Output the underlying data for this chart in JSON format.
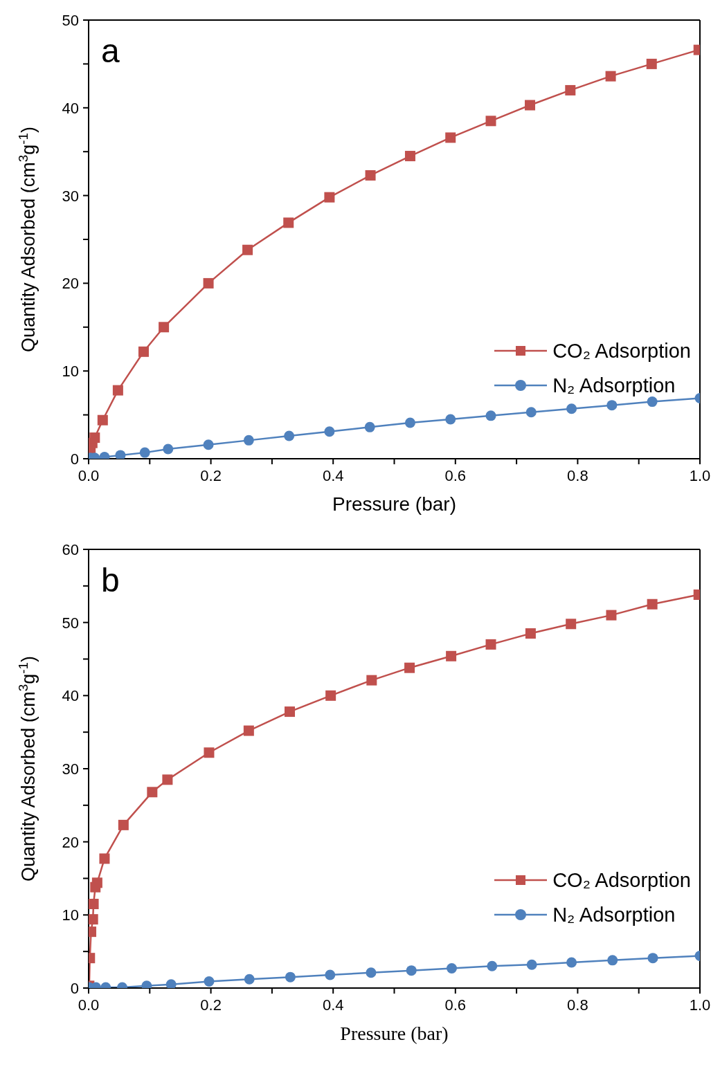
{
  "chart_data": [
    {
      "type": "line",
      "annotations": [
        "a"
      ],
      "xlabel": "Pressure (bar)",
      "ylabel": "Quantity Adsorbed (cm$^{3}$g$^{-1}$)",
      "xlim": [
        0,
        1
      ],
      "ylim": [
        0,
        50
      ],
      "xticks": [
        {
          "value": 0,
          "label": "0.0"
        },
        {
          "value": 0.1,
          "label": null
        },
        0.2,
        {
          "value": 0.3,
          "label": null
        },
        0.4,
        {
          "value": 0.5,
          "label": null
        },
        0.6,
        {
          "value": 0.7,
          "label": null
        },
        0.8,
        {
          "value": 0.9,
          "label": null
        },
        {
          "value": 1,
          "label": "1.0"
        }
      ],
      "yticks": [
        0,
        {
          "value": 5,
          "label": null
        },
        10,
        {
          "value": 15,
          "label": null
        },
        20,
        {
          "value": 25,
          "label": null
        },
        30,
        {
          "value": 35,
          "label": null
        },
        40,
        {
          "value": 45,
          "label": null
        },
        50
      ],
      "legend": "right",
      "line_style": "solid",
      "series": [
        {
          "name": "CO₂ Adsorption",
          "color": "#c0504d",
          "marker": "square",
          "x": [
            0.003,
            0.006,
            0.01,
            0.023,
            0.048,
            0.09,
            0.123,
            0.196,
            0.26,
            0.327,
            0.394,
            0.461,
            0.526,
            0.592,
            0.658,
            0.722,
            0.788,
            0.854,
            0.921,
            0.998
          ],
          "values": [
            1.0,
            1.8,
            2.4,
            4.4,
            7.8,
            12.2,
            15.0,
            20.0,
            23.8,
            26.9,
            29.8,
            32.3,
            34.5,
            36.6,
            38.5,
            40.3,
            42.0,
            43.6,
            45.0,
            46.6
          ]
        },
        {
          "name": "N₂ Adsorption",
          "color": "#4f81bd",
          "marker": "circle",
          "x": [
            0.003,
            0.01,
            0.026,
            0.052,
            0.092,
            0.13,
            0.196,
            0.262,
            0.328,
            0.394,
            0.46,
            0.526,
            0.592,
            0.658,
            0.724,
            0.79,
            0.856,
            0.922,
            1.0
          ],
          "values": [
            0.1,
            0.1,
            0.2,
            0.4,
            0.7,
            1.1,
            1.6,
            2.1,
            2.6,
            3.1,
            3.6,
            4.1,
            4.5,
            4.9,
            5.3,
            5.7,
            6.1,
            6.5,
            6.9
          ]
        }
      ]
    },
    {
      "type": "line",
      "annotations": [
        "b"
      ],
      "xlabel": "Pressure (bar)",
      "ylabel": "Quantity Adsorbed (cm$^{3}$g$^{-1}$)",
      "xlim": [
        0,
        1
      ],
      "ylim": [
        0,
        60
      ],
      "xticks": [
        {
          "value": 0,
          "label": "0.0"
        },
        {
          "value": 0.1,
          "label": null
        },
        0.2,
        {
          "value": 0.3,
          "label": null
        },
        0.4,
        {
          "value": 0.5,
          "label": null
        },
        0.6,
        {
          "value": 0.7,
          "label": null
        },
        0.8,
        {
          "value": 0.9,
          "label": null
        },
        {
          "value": 1,
          "label": "1.0"
        }
      ],
      "yticks": [
        0,
        {
          "value": 5,
          "label": null
        },
        10,
        {
          "value": 15,
          "label": null
        },
        20,
        {
          "value": 25,
          "label": null
        },
        30,
        {
          "value": 35,
          "label": null
        },
        40,
        {
          "value": 45,
          "label": null
        },
        50,
        {
          "value": 55,
          "label": null
        },
        60
      ],
      "legend": "right",
      "line_style": "solid",
      "series": [
        {
          "name": "CO₂ Adsorption",
          "color": "#c0504d",
          "marker": "square",
          "x": [
            0.001,
            0.002,
            0.004,
            0.007,
            0.008,
            0.011,
            0.014,
            0.026,
            0.057,
            0.104,
            0.129,
            0.197,
            0.262,
            0.329,
            0.396,
            0.463,
            0.525,
            0.593,
            0.658,
            0.723,
            0.789,
            0.855,
            0.922,
            0.998
          ],
          "values": [
            0.3,
            4.1,
            7.7,
            9.4,
            11.5,
            13.8,
            14.4,
            17.7,
            22.3,
            26.8,
            28.5,
            32.2,
            35.2,
            37.8,
            40.0,
            42.1,
            43.8,
            45.4,
            47.0,
            48.5,
            49.8,
            51.0,
            52.5,
            53.8
          ]
        },
        {
          "name": "N₂ Adsorption",
          "color": "#4f81bd",
          "marker": "circle",
          "x": [
            0.001,
            0.012,
            0.028,
            0.055,
            0.095,
            0.135,
            0.197,
            0.263,
            0.33,
            0.395,
            0.462,
            0.528,
            0.594,
            0.66,
            0.725,
            0.79,
            0.857,
            0.923,
            1.0
          ],
          "values": [
            0.1,
            0.1,
            0.1,
            0.1,
            0.3,
            0.5,
            0.9,
            1.2,
            1.5,
            1.8,
            2.1,
            2.4,
            2.7,
            3.0,
            3.2,
            3.5,
            3.8,
            4.1,
            4.4
          ]
        }
      ]
    }
  ]
}
